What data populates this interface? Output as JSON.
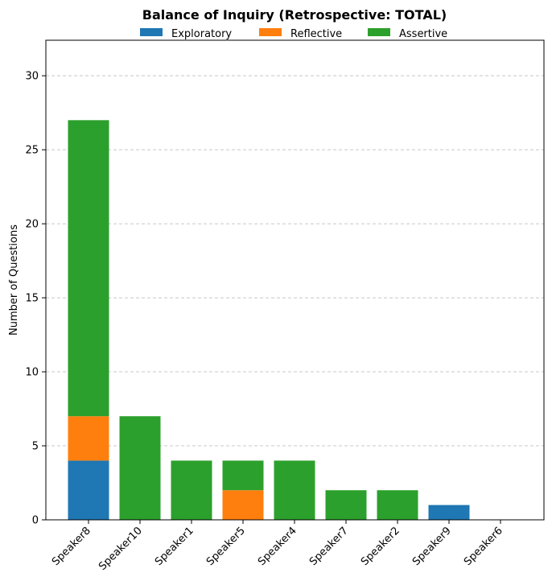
{
  "chart_data": {
    "type": "bar",
    "stacked": true,
    "title": "Balance of Inquiry (Retrospective: TOTAL)",
    "xlabel": "",
    "ylabel": "Number of Questions",
    "ylim": [
      0,
      32.4
    ],
    "yticks": [
      0,
      5,
      10,
      15,
      20,
      25,
      30
    ],
    "grid": "y-dashed",
    "legend": "top-center",
    "categories": [
      "Speaker8",
      "Speaker10",
      "Speaker1",
      "Speaker5",
      "Speaker4",
      "Speaker7",
      "Speaker2",
      "Speaker9",
      "Speaker6"
    ],
    "series": [
      {
        "name": "Exploratory",
        "color": "#1f77b4",
        "values": [
          4,
          0,
          0,
          0,
          0,
          0,
          0,
          1,
          0
        ]
      },
      {
        "name": "Reflective",
        "color": "#ff7f0e",
        "values": [
          3,
          0,
          0,
          2,
          0,
          0,
          0,
          0,
          0
        ]
      },
      {
        "name": "Assertive",
        "color": "#2ca02c",
        "values": [
          20,
          7,
          4,
          2,
          4,
          2,
          2,
          0,
          0
        ]
      }
    ]
  }
}
